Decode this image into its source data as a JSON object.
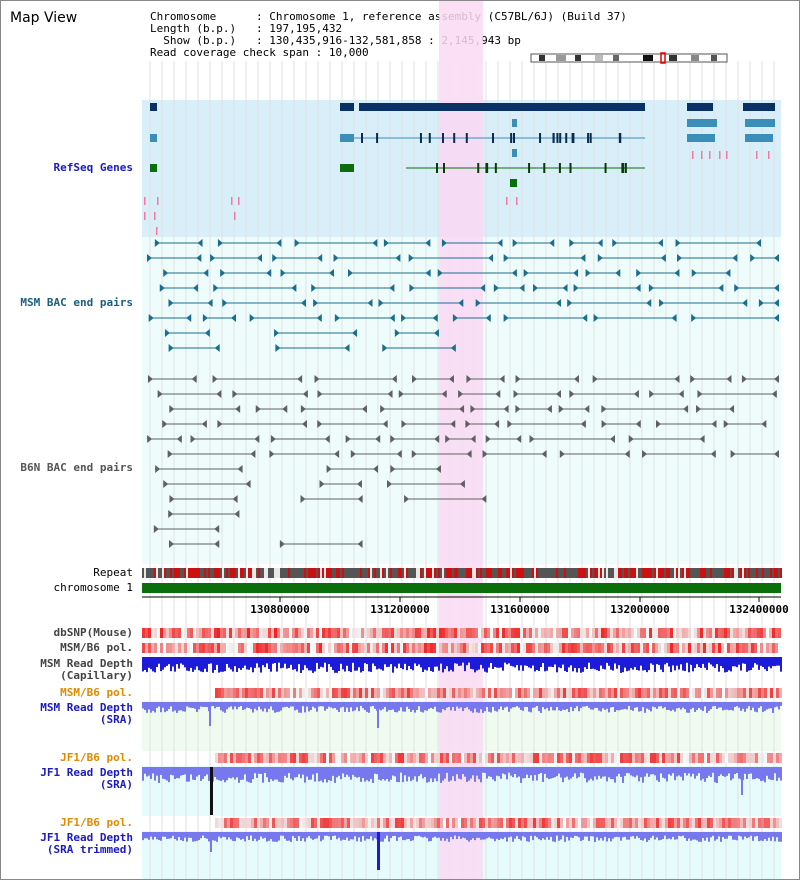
{
  "title": "Map View",
  "info": {
    "chromosome_key": "Chromosome",
    "chromosome_val": "Chromosome 1, reference assembly (C57BL/6J) (Build 37)",
    "length_key": "Length (b.p.)",
    "length_val": "197,195,432",
    "show_key": "Show (b.p.)",
    "show_val": "130,435,916-132,581,858 : 2,145,943 bp",
    "coverage_key": "Read coverage check span",
    "coverage_val": "10,000"
  },
  "tracks": {
    "refseq": "RefSeq Genes",
    "msm_bac": "MSM BAC end pairs",
    "b6n_bac": "B6N BAC end pairs",
    "repeat": "Repeat",
    "chromosome": "chromosome 1",
    "dbsnp": "dbSNP(Mouse)",
    "msm_pol1": "MSM/B6 pol.",
    "msm_depth_cap_1": "MSM Read Depth",
    "msm_depth_cap_2": "(Capillary)",
    "msm_pol2": "MSM/B6 pol.",
    "msm_depth_sra_1": "MSM Read Depth",
    "msm_depth_sra_2": "(SRA)",
    "jf1_pol1": "JF1/B6 pol.",
    "jf1_depth_1": "JF1 Read Depth",
    "jf1_depth_2": "(SRA)",
    "jf1_pol2": "JF1/B6 pol.",
    "jf1_trim_1": "JF1 Read Depth",
    "jf1_trim_2": "(SRA trimmed)"
  },
  "axis": {
    "ticks": [
      "130800000",
      "131200000",
      "131600000",
      "132000000",
      "132400000"
    ]
  },
  "colors": {
    "refseq_bg": "#d8eff9",
    "bac_bg": "#eefcfc",
    "highlight": "#f9d9f3",
    "refseq_navy": "#0a3166",
    "refseq_teal": "#3a8eb7",
    "refseq_green": "#0a6e0a",
    "msm_line": "#1b6e8e",
    "b6n_line": "#606060",
    "depth_blue": "#1b1bd8",
    "depth_light": "#7777ee",
    "pol_red": "#e02020",
    "label_blue": "#1a1ac0",
    "label_teal": "#1a5e80",
    "label_orange": "#e08a00"
  }
}
